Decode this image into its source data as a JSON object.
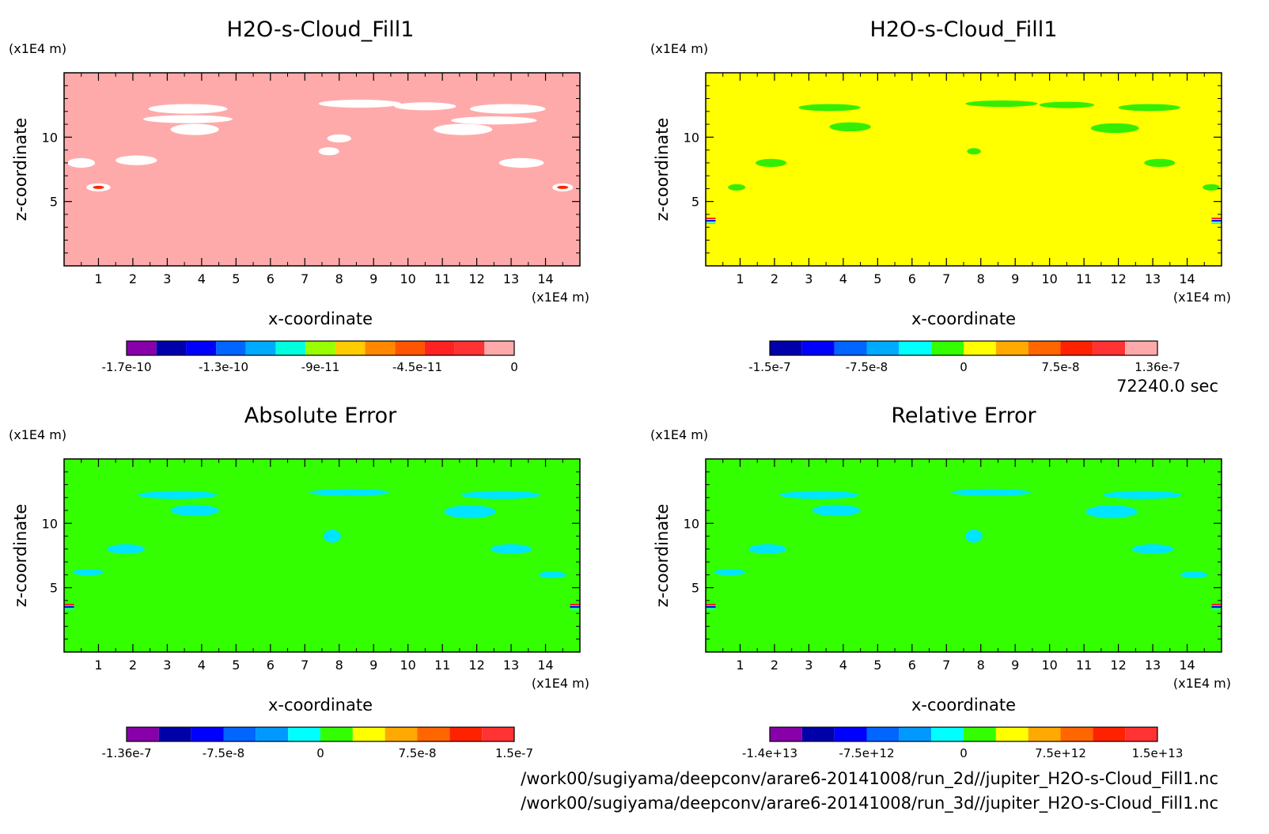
{
  "time_label": "72240.0 sec",
  "footer": {
    "path1": "/work00/sugiyama/deepconv/arare6-20141008/run_2d//jupiter_H2O-s-Cloud_Fill1.nc",
    "path2": "/work00/sugiyama/deepconv/arare6-20141008/run_3d//jupiter_H2O-s-Cloud_Fill1.nc"
  },
  "chart_data": [
    {
      "type": "heatmap",
      "title": "H2O-s-Cloud_Fill1",
      "xlabel": "x-coordinate",
      "ylabel": "z-coordinate",
      "x_unit": "(x1E4 m)",
      "y_unit": "(x1E4 m)",
      "x_ticks": [
        "1",
        "2",
        "3",
        "4",
        "5",
        "6",
        "7",
        "8",
        "9",
        "10",
        "11",
        "12",
        "13",
        "14"
      ],
      "y_ticks": [
        "5",
        "10"
      ],
      "xlim": [
        0,
        15
      ],
      "ylim": [
        0,
        15
      ],
      "background_color": "#ffaaaa",
      "colorbar": {
        "colors": [
          "#8800aa",
          "#0000aa",
          "#0000ff",
          "#0066ff",
          "#00aaff",
          "#00ffdd",
          "#99ff00",
          "#ffcc00",
          "#ff8800",
          "#ff5500",
          "#ff2222",
          "#ff3333",
          "#ffaaaa"
        ],
        "labels": [
          "-1.7e-10",
          "-1.3e-10",
          "-9e-11",
          "-4.5e-11",
          "0"
        ]
      }
    },
    {
      "type": "heatmap",
      "title": "H2O-s-Cloud_Fill1",
      "xlabel": "x-coordinate",
      "ylabel": "z-coordinate",
      "x_unit": "(x1E4 m)",
      "y_unit": "(x1E4 m)",
      "x_ticks": [
        "1",
        "2",
        "3",
        "4",
        "5",
        "6",
        "7",
        "8",
        "9",
        "10",
        "11",
        "12",
        "13",
        "14"
      ],
      "y_ticks": [
        "5",
        "10"
      ],
      "xlim": [
        0,
        15
      ],
      "ylim": [
        0,
        15
      ],
      "background_color": "#ffff00",
      "colorbar": {
        "colors": [
          "#0000aa",
          "#0000ff",
          "#0066ff",
          "#00aaff",
          "#00ffff",
          "#33ff00",
          "#ffff00",
          "#ffaa00",
          "#ff6600",
          "#ff2200",
          "#ff3333",
          "#ffaaaa"
        ],
        "labels": [
          "-1.5e-7",
          "-7.5e-8",
          "0",
          "7.5e-8",
          "1.36e-7"
        ]
      }
    },
    {
      "type": "heatmap",
      "title": "Absolute Error",
      "xlabel": "x-coordinate",
      "ylabel": "z-coordinate",
      "x_unit": "(x1E4 m)",
      "y_unit": "(x1E4 m)",
      "x_ticks": [
        "1",
        "2",
        "3",
        "4",
        "5",
        "6",
        "7",
        "8",
        "9",
        "10",
        "11",
        "12",
        "13",
        "14"
      ],
      "y_ticks": [
        "5",
        "10"
      ],
      "xlim": [
        0,
        15
      ],
      "ylim": [
        0,
        15
      ],
      "background_color": "#33ff00",
      "colorbar": {
        "colors": [
          "#8800aa",
          "#0000aa",
          "#0000ff",
          "#0066ff",
          "#0099ff",
          "#00ffff",
          "#33ff00",
          "#ffff00",
          "#ffaa00",
          "#ff6600",
          "#ff2200",
          "#ff3333"
        ],
        "labels": [
          "-1.36e-7",
          "-7.5e-8",
          "0",
          "7.5e-8",
          "1.5e-7"
        ]
      }
    },
    {
      "type": "heatmap",
      "title": "Relative Error",
      "xlabel": "x-coordinate",
      "ylabel": "z-coordinate",
      "x_unit": "(x1E4 m)",
      "y_unit": "(x1E4 m)",
      "x_ticks": [
        "1",
        "2",
        "3",
        "4",
        "5",
        "6",
        "7",
        "8",
        "9",
        "10",
        "11",
        "12",
        "13",
        "14"
      ],
      "y_ticks": [
        "5",
        "10"
      ],
      "xlim": [
        0,
        15
      ],
      "ylim": [
        0,
        15
      ],
      "background_color": "#33ff00",
      "colorbar": {
        "colors": [
          "#8800aa",
          "#0000aa",
          "#0000ff",
          "#0066ff",
          "#0099ff",
          "#00ffff",
          "#33ff00",
          "#ffff00",
          "#ffaa00",
          "#ff6600",
          "#ff2200",
          "#ff3333"
        ],
        "labels": [
          "-1.4e+13",
          "-7.5e+12",
          "0",
          "7.5e+12",
          "1.5e+13"
        ]
      }
    }
  ]
}
